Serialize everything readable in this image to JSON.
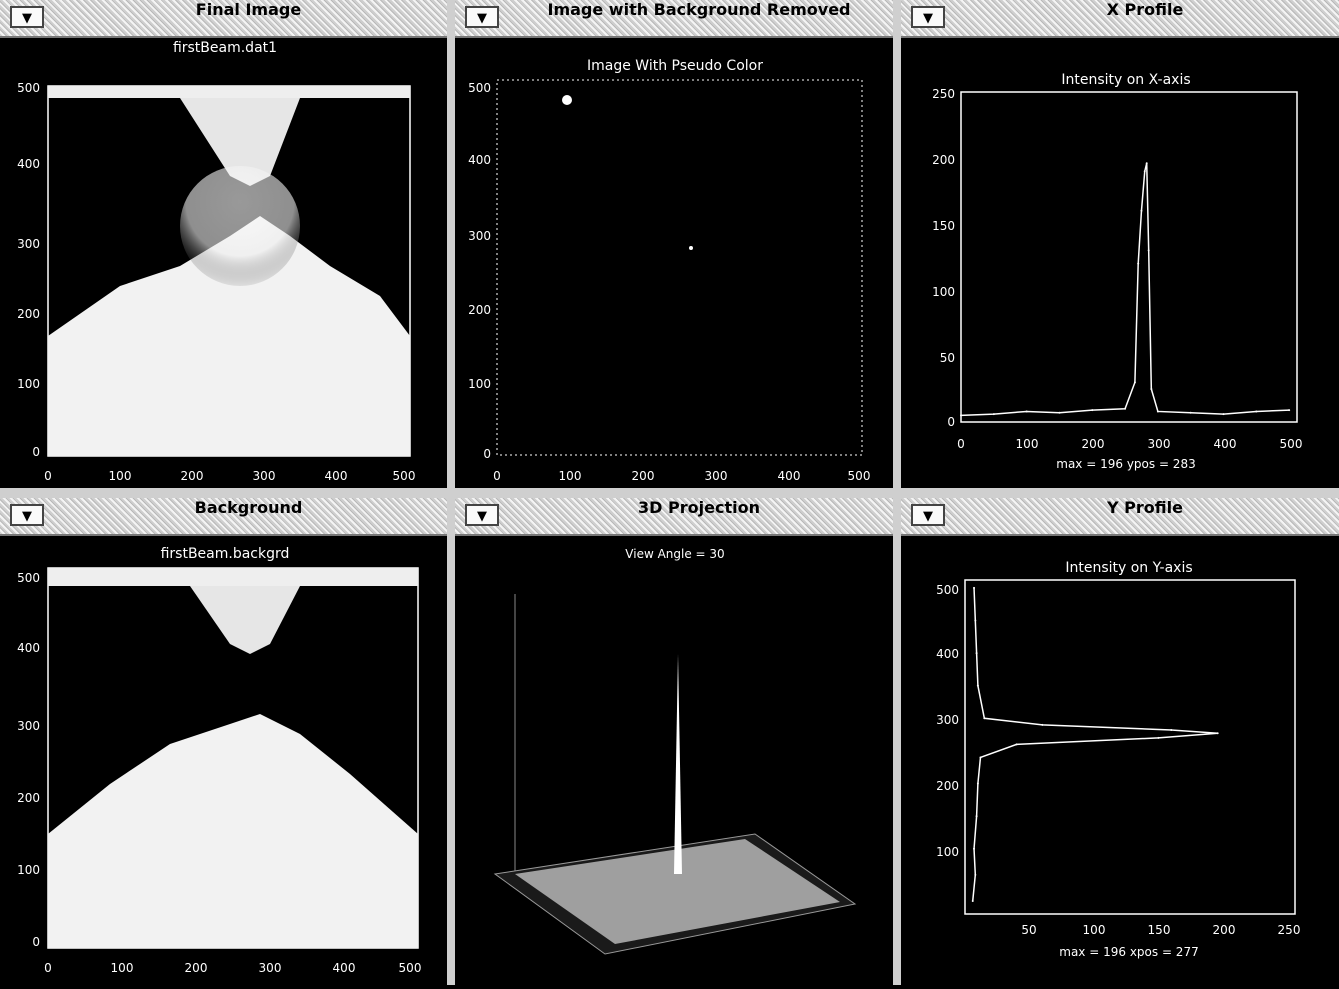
{
  "windows": {
    "final_image": {
      "title": "Final Image",
      "menu_glyph": "▼",
      "plot_title": "firstBeam.dat1",
      "x_ticks": [
        "0",
        "100",
        "200",
        "300",
        "400",
        "500"
      ],
      "y_ticks": [
        "0",
        "100",
        "200",
        "300",
        "400",
        "500"
      ]
    },
    "background_removed": {
      "title": "Image with Background Removed",
      "menu_glyph": "▼",
      "plot_title": "Image With Pseudo Color",
      "x_ticks": [
        "0",
        "100",
        "200",
        "300",
        "400",
        "500"
      ],
      "y_ticks": [
        "0",
        "100",
        "200",
        "300",
        "400",
        "500"
      ]
    },
    "x_profile": {
      "title": "X Profile",
      "menu_glyph": "▼",
      "plot_title": "Intensity on X-axis",
      "x_ticks": [
        "0",
        "100",
        "200",
        "300",
        "400",
        "500"
      ],
      "y_ticks": [
        "0",
        "50",
        "100",
        "150",
        "200",
        "250"
      ],
      "caption": "max = 196   ypos = 283"
    },
    "background": {
      "title": "Background",
      "menu_glyph": "▼",
      "plot_title": "firstBeam.backgrd",
      "x_ticks": [
        "0",
        "100",
        "200",
        "300",
        "400",
        "500"
      ],
      "y_ticks": [
        "0",
        "100",
        "200",
        "300",
        "400",
        "500"
      ]
    },
    "projection_3d": {
      "title": "3D Projection",
      "menu_glyph": "▼",
      "view_angle": "View Angle =  30"
    },
    "y_profile": {
      "title": "Y Profile",
      "menu_glyph": "▼",
      "plot_title": "Intensity on Y-axis",
      "x_ticks": [
        "50",
        "100",
        "150",
        "200",
        "250"
      ],
      "y_ticks": [
        "100",
        "200",
        "300",
        "400",
        "500"
      ],
      "caption": "max = 196   xpos = 277"
    }
  },
  "chart_data": [
    {
      "type": "line",
      "title": "Intensity on X-axis",
      "xlim": [
        0,
        512
      ],
      "ylim": [
        0,
        250
      ],
      "x": [
        0,
        50,
        100,
        150,
        200,
        250,
        265,
        270,
        275,
        280,
        283,
        286,
        290,
        300,
        350,
        400,
        450,
        500
      ],
      "y": [
        5,
        6,
        8,
        7,
        9,
        10,
        30,
        120,
        160,
        190,
        196,
        130,
        25,
        8,
        7,
        6,
        8,
        9
      ]
    },
    {
      "type": "line",
      "title": "Intensity on Y-axis",
      "xlim": [
        0,
        256
      ],
      "ylim": [
        0,
        512
      ],
      "y": [
        20,
        60,
        100,
        150,
        200,
        240,
        260,
        270,
        277,
        282,
        290,
        300,
        350,
        400,
        450,
        500
      ],
      "x": [
        6,
        8,
        7,
        9,
        10,
        12,
        40,
        150,
        196,
        160,
        60,
        15,
        10,
        9,
        8,
        7
      ]
    }
  ]
}
